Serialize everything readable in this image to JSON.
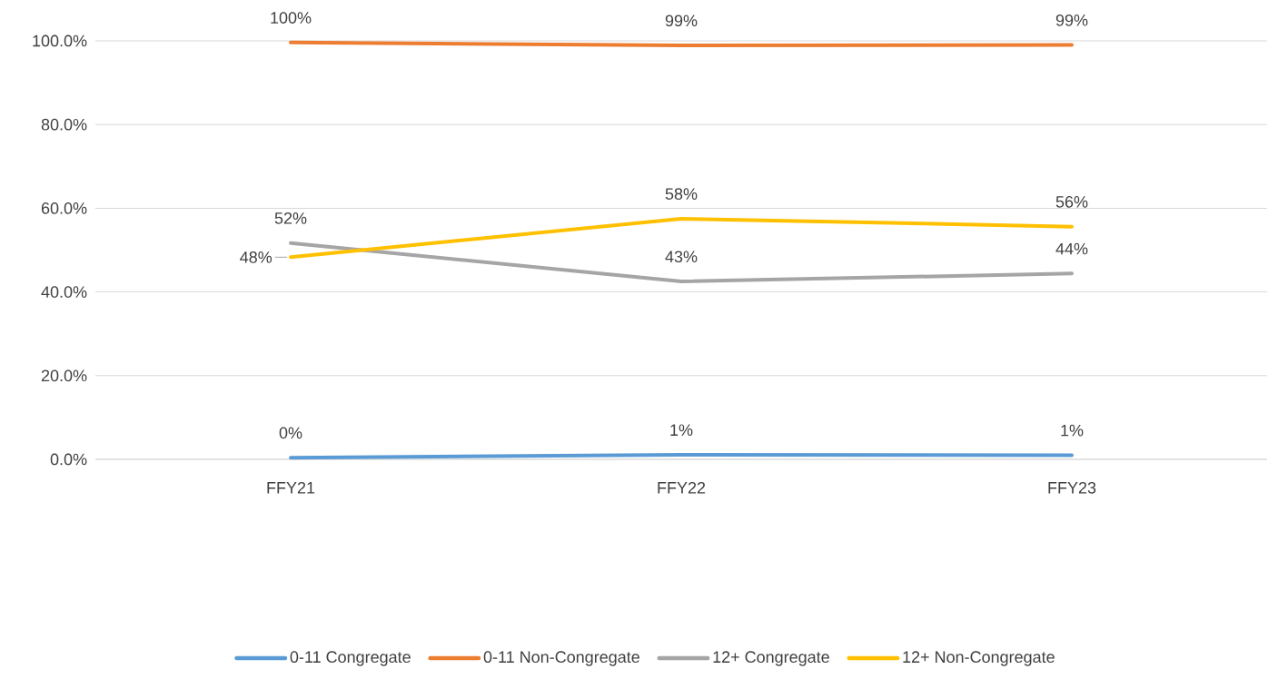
{
  "chart_data": {
    "type": "line",
    "categories": [
      "FFY21",
      "FFY22",
      "FFY23"
    ],
    "ylim": [
      0,
      100
    ],
    "yticks": [
      {
        "value": 0,
        "label": "0.0%"
      },
      {
        "value": 20,
        "label": "20.0%"
      },
      {
        "value": 40,
        "label": "40.0%"
      },
      {
        "value": 60,
        "label": "60.0%"
      },
      {
        "value": 80,
        "label": "80.0%"
      },
      {
        "value": 100,
        "label": "100.0%"
      }
    ],
    "grid": "y",
    "legend": "bottom",
    "series": [
      {
        "name": "0-11 Congregate",
        "color": "#5b9bd5",
        "values": [
          0.4,
          1.1,
          1.0
        ],
        "value_labels": [
          "0%",
          "1%",
          "1%"
        ]
      },
      {
        "name": "0-11 Non-Congregate",
        "color": "#ed7d31",
        "values": [
          99.6,
          98.9,
          99.0
        ],
        "value_labels": [
          "100%",
          "99%",
          "99%"
        ]
      },
      {
        "name": "12+ Congregate",
        "color": "#a5a5a5",
        "values": [
          51.7,
          42.5,
          44.4
        ],
        "value_labels": [
          "52%",
          "43%",
          "44%"
        ]
      },
      {
        "name": "12+ Non-Congregate",
        "color": "#ffc000",
        "values": [
          48.3,
          57.5,
          55.6
        ],
        "value_labels": [
          "48%",
          "58%",
          "56%"
        ]
      }
    ]
  }
}
